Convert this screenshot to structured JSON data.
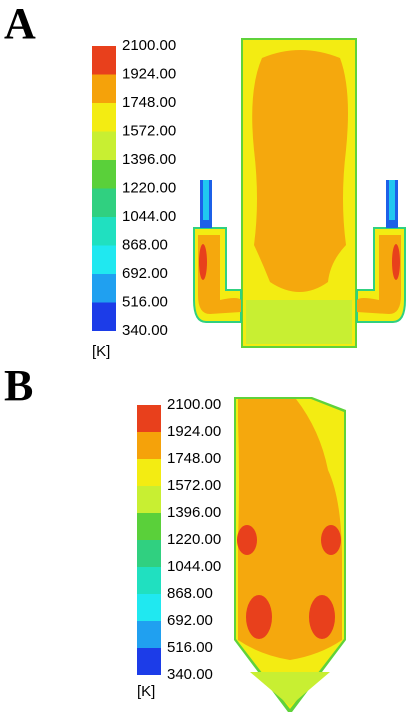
{
  "panels": [
    {
      "label": "A",
      "scale": {
        "ticks": [
          "2100.00",
          "1924.00",
          "1748.00",
          "1572.00",
          "1396.00",
          "1220.00",
          "1044.00",
          "868.00",
          "692.00",
          "516.00",
          "340.00"
        ],
        "unit": "[K]"
      }
    },
    {
      "label": "B",
      "scale": {
        "ticks": [
          "2100.00",
          "1924.00",
          "1748.00",
          "1572.00",
          "1396.00",
          "1220.00",
          "1044.00",
          "868.00",
          "692.00",
          "516.00",
          "340.00"
        ],
        "unit": "[K]"
      }
    }
  ]
}
